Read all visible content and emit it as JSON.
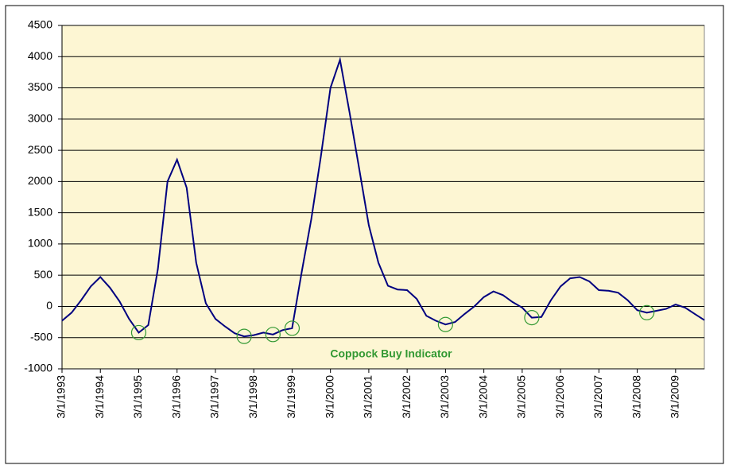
{
  "chart_data": {
    "type": "line",
    "categories": [
      "3/1/1993",
      null,
      null,
      null,
      "3/1/1994",
      null,
      null,
      null,
      "3/1/1995",
      null,
      null,
      null,
      "3/1/1996",
      null,
      null,
      null,
      "3/1/1997",
      null,
      null,
      null,
      "3/1/1998",
      null,
      null,
      null,
      "3/1/1999",
      null,
      null,
      null,
      "3/1/2000",
      null,
      null,
      null,
      "3/1/2001",
      null,
      null,
      null,
      "3/1/2002",
      null,
      null,
      null,
      "3/1/2003",
      null,
      null,
      null,
      "3/1/2004",
      null,
      null,
      null,
      "3/1/2005",
      null,
      null,
      null,
      "3/1/2006",
      null,
      null,
      null,
      "3/1/2007",
      null,
      null,
      null,
      "3/1/2008",
      null,
      null,
      null,
      "3/1/2009",
      null,
      null,
      null
    ],
    "series": [
      {
        "name": "Coppock",
        "color": "#000080",
        "values": [
          -230,
          -100,
          100,
          320,
          470,
          300,
          80,
          -200,
          -420,
          -300,
          600,
          2000,
          2350,
          1900,
          700,
          50,
          -200,
          -320,
          -430,
          -480,
          -460,
          -420,
          -450,
          -380,
          -350,
          550,
          1400,
          2400,
          3500,
          3950,
          3100,
          2200,
          1300,
          700,
          330,
          270,
          260,
          120,
          -150,
          -230,
          -290,
          -250,
          -120,
          0,
          150,
          240,
          180,
          70,
          -20,
          -180,
          -170,
          100,
          320,
          450,
          470,
          400,
          260,
          250,
          220,
          100,
          -60,
          -100,
          -70,
          -40,
          30,
          -20,
          -120,
          -220
        ]
      },
      {
        "name": "Coppock Buy Indicator",
        "color": "#339933",
        "values": [
          null,
          null,
          null,
          null,
          null,
          null,
          null,
          null,
          -420,
          null,
          null,
          null,
          null,
          null,
          null,
          null,
          null,
          null,
          null,
          -480,
          null,
          null,
          -450,
          null,
          -350,
          null,
          null,
          null,
          null,
          null,
          null,
          null,
          null,
          null,
          null,
          null,
          null,
          null,
          null,
          null,
          -290,
          null,
          null,
          null,
          null,
          null,
          null,
          null,
          null,
          -180,
          null,
          null,
          null,
          null,
          null,
          null,
          null,
          null,
          null,
          null,
          null,
          -100,
          null,
          null,
          null,
          null,
          null,
          null
        ]
      }
    ],
    "ylim": [
      -1000,
      4500
    ],
    "yticks": [
      -1000,
      -500,
      0,
      500,
      1000,
      1500,
      2000,
      2500,
      3000,
      3500,
      4000,
      4500
    ],
    "grid": true
  }
}
